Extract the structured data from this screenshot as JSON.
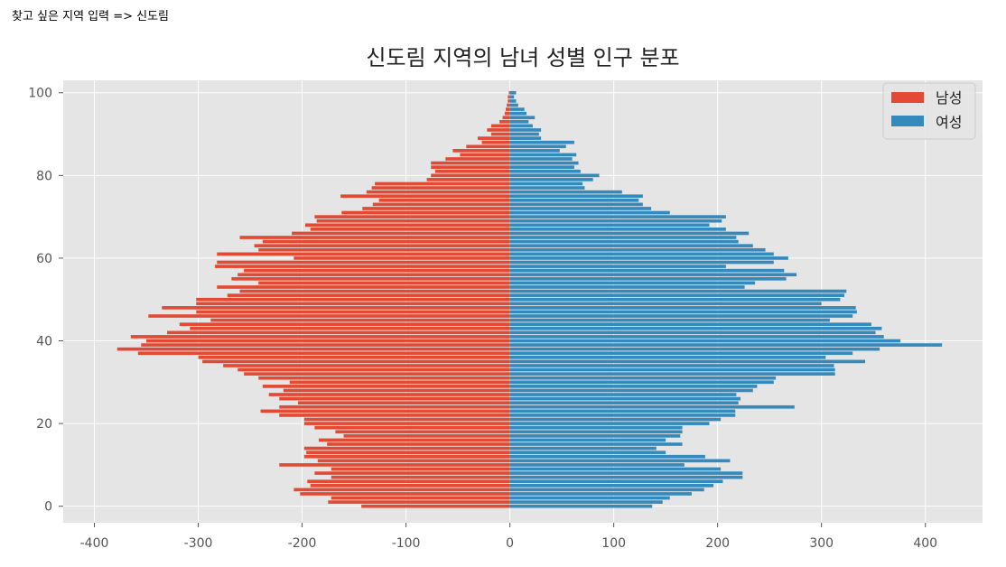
{
  "prompt": {
    "label": "찾고 싶은 지역 입력 => ",
    "value": "신도림"
  },
  "chart_data": {
    "type": "bar",
    "orientation": "horizontal",
    "title": "신도림 지역의 남녀 성별 인구 분포",
    "xlabel": "",
    "ylabel": "",
    "xlim": [
      -430,
      455
    ],
    "ylim": [
      -4,
      103
    ],
    "xticks": [
      -400,
      -300,
      -200,
      -100,
      0,
      100,
      200,
      300,
      400
    ],
    "xtick_labels": [
      "-400",
      "-300",
      "-200",
      "-100",
      "0",
      "100",
      "200",
      "300",
      "400"
    ],
    "yticks": [
      0,
      20,
      40,
      60,
      80,
      100
    ],
    "ytick_labels": [
      "0",
      "20",
      "40",
      "60",
      "80",
      "100"
    ],
    "grid": true,
    "legend_position": "top-right",
    "categories": [
      0,
      1,
      2,
      3,
      4,
      5,
      6,
      7,
      8,
      9,
      10,
      11,
      12,
      13,
      14,
      15,
      16,
      17,
      18,
      19,
      20,
      21,
      22,
      23,
      24,
      25,
      26,
      27,
      28,
      29,
      30,
      31,
      32,
      33,
      34,
      35,
      36,
      37,
      38,
      39,
      40,
      41,
      42,
      43,
      44,
      45,
      46,
      47,
      48,
      49,
      50,
      51,
      52,
      53,
      54,
      55,
      56,
      57,
      58,
      59,
      60,
      61,
      62,
      63,
      64,
      65,
      66,
      67,
      68,
      69,
      70,
      71,
      72,
      73,
      74,
      75,
      76,
      77,
      78,
      79,
      80,
      81,
      82,
      83,
      84,
      85,
      86,
      87,
      88,
      89,
      90,
      91,
      92,
      93,
      94,
      95,
      96,
      97,
      98,
      99,
      100
    ],
    "series": [
      {
        "name": "남성",
        "color": "#E24A33",
        "values": [
          -143,
          -175,
          -172,
          -202,
          -208,
          -192,
          -195,
          -172,
          -188,
          -172,
          -222,
          -185,
          -198,
          -196,
          -198,
          -176,
          -184,
          -160,
          -168,
          -188,
          -198,
          -198,
          -222,
          -240,
          -222,
          -204,
          -222,
          -232,
          -218,
          -238,
          -212,
          -242,
          -256,
          -262,
          -276,
          -296,
          -300,
          -358,
          -378,
          -355,
          -350,
          -365,
          -330,
          -308,
          -318,
          -288,
          -348,
          -302,
          -335,
          -302,
          -302,
          -272,
          -260,
          -282,
          -242,
          -268,
          -262,
          -256,
          -284,
          -282,
          -208,
          -282,
          -242,
          -246,
          -238,
          -260,
          -210,
          -192,
          -197,
          -186,
          -188,
          -162,
          -142,
          -132,
          -126,
          -163,
          -138,
          -133,
          -130,
          -80,
          -76,
          -72,
          -76,
          -76,
          -62,
          -48,
          -55,
          -42,
          -27,
          -31,
          -18,
          -22,
          -18,
          -10,
          -7,
          -5,
          -4,
          -3,
          -2,
          -2,
          -1
        ]
      },
      {
        "name": "여성",
        "color": "#348ABD",
        "values": [
          137,
          147,
          154,
          175,
          187,
          196,
          205,
          224,
          224,
          203,
          168,
          212,
          188,
          150,
          141,
          166,
          150,
          164,
          166,
          166,
          192,
          203,
          217,
          217,
          274,
          220,
          222,
          218,
          234,
          238,
          254,
          256,
          313,
          313,
          312,
          342,
          304,
          330,
          356,
          416,
          376,
          360,
          352,
          358,
          348,
          308,
          330,
          334,
          333,
          300,
          318,
          322,
          324,
          226,
          236,
          266,
          276,
          264,
          208,
          254,
          268,
          254,
          246,
          234,
          220,
          218,
          230,
          208,
          192,
          204,
          208,
          154,
          136,
          128,
          124,
          128,
          108,
          72,
          70,
          80,
          86,
          68,
          62,
          66,
          60,
          64,
          48,
          54,
          62,
          30,
          28,
          30,
          22,
          18,
          24,
          16,
          14,
          8,
          6,
          4,
          6
        ]
      }
    ]
  }
}
